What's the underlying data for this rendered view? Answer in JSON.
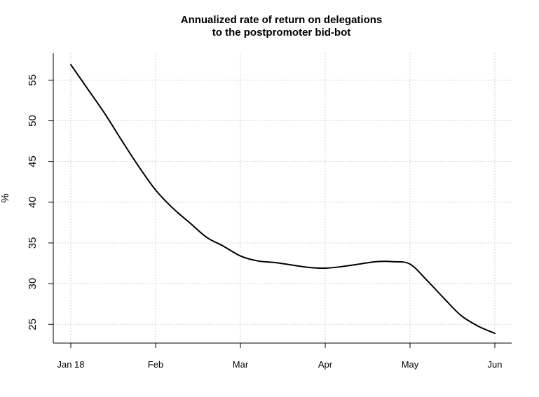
{
  "chart_data": {
    "type": "line",
    "title_lines": [
      "Annualized rate of return on delegations",
      "to the postpromoter bid-bot"
    ],
    "xlabel": "",
    "ylabel": "%",
    "x_ticks": [
      "Jan 18",
      "Feb",
      "Mar",
      "Apr",
      "May",
      "Jun"
    ],
    "y_ticks": [
      25,
      30,
      35,
      40,
      45,
      50,
      55
    ],
    "ylim": [
      22.7,
      58.3
    ],
    "grid": true,
    "series": [
      {
        "color": "#000000",
        "x": [
          0.0,
          0.2,
          0.4,
          0.6,
          0.8,
          1.0,
          1.2,
          1.4,
          1.6,
          1.8,
          2.0,
          2.2,
          2.4,
          2.6,
          2.8,
          3.0,
          3.2,
          3.4,
          3.6,
          3.8,
          4.0,
          4.2,
          4.4,
          4.6,
          4.8,
          5.0
        ],
        "values": [
          56.9,
          53.9,
          50.9,
          47.6,
          44.4,
          41.5,
          39.3,
          37.5,
          35.7,
          34.6,
          33.4,
          32.8,
          32.6,
          32.3,
          32.0,
          31.9,
          32.1,
          32.4,
          32.7,
          32.7,
          32.4,
          30.4,
          28.2,
          26.1,
          24.8,
          23.9
        ]
      }
    ]
  }
}
